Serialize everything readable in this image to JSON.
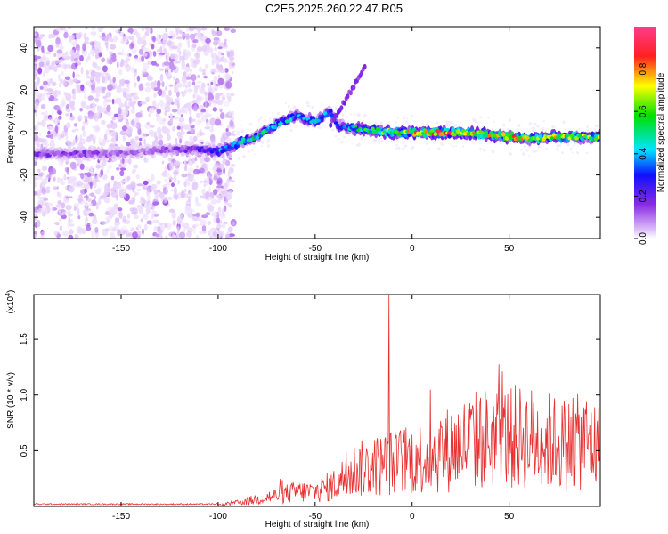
{
  "title": "C2E5.2025.260.22.47.R05",
  "chart_data": [
    {
      "type": "heatmap",
      "xlabel": "Height of straight line (km)",
      "ylabel": "Frequency (Hz)",
      "xlim": [
        -195,
        97
      ],
      "ylim": [
        -50,
        50
      ],
      "x_ticks": [
        -150,
        -100,
        -50,
        0,
        50
      ],
      "y_ticks": [
        -40,
        -20,
        0,
        20,
        40
      ],
      "colorbar": {
        "label": "Normalized spectral amplitude",
        "range": [
          0,
          1
        ],
        "ticks": [
          "0.0",
          "0.2",
          "0.4",
          "0.6",
          "0.8"
        ],
        "colors": [
          "#ffffff",
          "#d8b4f8",
          "#8a2be2",
          "#1010ff",
          "#00e5ff",
          "#00e000",
          "#ffff00",
          "#ff2020",
          "#ff3c8c"
        ]
      },
      "ridge": [
        {
          "x": -170,
          "f": -10,
          "a": 0.25
        },
        {
          "x": -150,
          "f": -10,
          "a": 0.2
        },
        {
          "x": -130,
          "f": -8,
          "a": 0.2
        },
        {
          "x": -110,
          "f": -8,
          "a": 0.3
        },
        {
          "x": -100,
          "f": -9,
          "a": 0.45
        },
        {
          "x": -90,
          "f": -5,
          "a": 0.5
        },
        {
          "x": -80,
          "f": -2,
          "a": 0.55
        },
        {
          "x": -70,
          "f": 4,
          "a": 0.5
        },
        {
          "x": -60,
          "f": 8,
          "a": 0.45
        },
        {
          "x": -50,
          "f": 5,
          "a": 0.5
        },
        {
          "x": -42,
          "f": 10,
          "a": 0.4
        },
        {
          "x": -38,
          "f": 3,
          "a": 0.4
        },
        {
          "x": -30,
          "f": 2,
          "a": 0.55
        },
        {
          "x": -20,
          "f": 1,
          "a": 0.6
        },
        {
          "x": -10,
          "f": 0,
          "a": 0.75
        },
        {
          "x": 0,
          "f": 0,
          "a": 0.8
        },
        {
          "x": 10,
          "f": 0,
          "a": 0.85
        },
        {
          "x": 20,
          "f": 0,
          "a": 0.8
        },
        {
          "x": 30,
          "f": 0,
          "a": 0.85
        },
        {
          "x": 40,
          "f": -1,
          "a": 0.75
        },
        {
          "x": 50,
          "f": -2,
          "a": 0.8
        },
        {
          "x": 60,
          "f": -3,
          "a": 0.75
        },
        {
          "x": 70,
          "f": -2,
          "a": 0.7
        },
        {
          "x": 80,
          "f": -2,
          "a": 0.75
        },
        {
          "x": 90,
          "f": -2,
          "a": 0.65
        }
      ]
    },
    {
      "type": "line",
      "xlabel": "Height of straight line (km)",
      "ylabel": "SNR (10 * v/v)",
      "yunit": "(x10",
      "yunit_exp": "4",
      "xlim": [
        -195,
        97
      ],
      "ylim": [
        0,
        1.9
      ],
      "x_ticks": [
        -150,
        -100,
        -50,
        0,
        50
      ],
      "y_ticks": [
        "0.5",
        "1.0",
        "1.5"
      ],
      "line_color": "#e83030",
      "envelope": [
        {
          "x": -195,
          "y": 0.02
        },
        {
          "x": -100,
          "y": 0.02
        },
        {
          "x": -90,
          "y": 0.05
        },
        {
          "x": -80,
          "y": 0.1
        },
        {
          "x": -70,
          "y": 0.15
        },
        {
          "x": -60,
          "y": 0.2
        },
        {
          "x": -50,
          "y": 0.2
        },
        {
          "x": -40,
          "y": 0.3
        },
        {
          "x": -30,
          "y": 0.5
        },
        {
          "x": -20,
          "y": 0.55
        },
        {
          "x": -12,
          "y": 0.6
        },
        {
          "x": 0,
          "y": 0.65
        },
        {
          "x": 10,
          "y": 0.7
        },
        {
          "x": 20,
          "y": 0.8
        },
        {
          "x": 30,
          "y": 0.9
        },
        {
          "x": 40,
          "y": 0.95
        },
        {
          "x": 50,
          "y": 0.95
        },
        {
          "x": 60,
          "y": 0.95
        },
        {
          "x": 70,
          "y": 0.9
        },
        {
          "x": 80,
          "y": 0.85
        },
        {
          "x": 90,
          "y": 0.9
        },
        {
          "x": 97,
          "y": 0.8
        }
      ],
      "spike": {
        "x": -12,
        "y": 1.9
      }
    }
  ]
}
